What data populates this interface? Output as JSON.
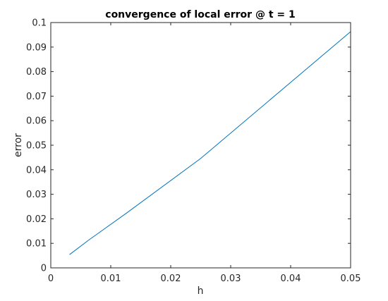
{
  "chart_data": {
    "type": "line",
    "title": "convergence of local error @ t = 1",
    "xlabel": "h",
    "ylabel": "error",
    "xlim": [
      0,
      0.05
    ],
    "ylim": [
      0,
      0.1
    ],
    "xticks": [
      0,
      0.01,
      0.02,
      0.03,
      0.04,
      0.05
    ],
    "xtick_labels": [
      "0",
      "0.01",
      "0.02",
      "0.03",
      "0.04",
      "0.05"
    ],
    "yticks": [
      0,
      0.01,
      0.02,
      0.03,
      0.04,
      0.05,
      0.06,
      0.07,
      0.08,
      0.09,
      0.1
    ],
    "ytick_labels": [
      "0",
      "0.01",
      "0.02",
      "0.03",
      "0.04",
      "0.05",
      "0.06",
      "0.07",
      "0.08",
      "0.09",
      "0.1"
    ],
    "grid": false,
    "series": [
      {
        "color": "#0072BD",
        "x": [
          0.003125,
          0.00625,
          0.0125,
          0.025,
          0.05
        ],
        "y": [
          0.0054,
          0.0112,
          0.0221,
          0.0446,
          0.0963
        ]
      }
    ]
  }
}
